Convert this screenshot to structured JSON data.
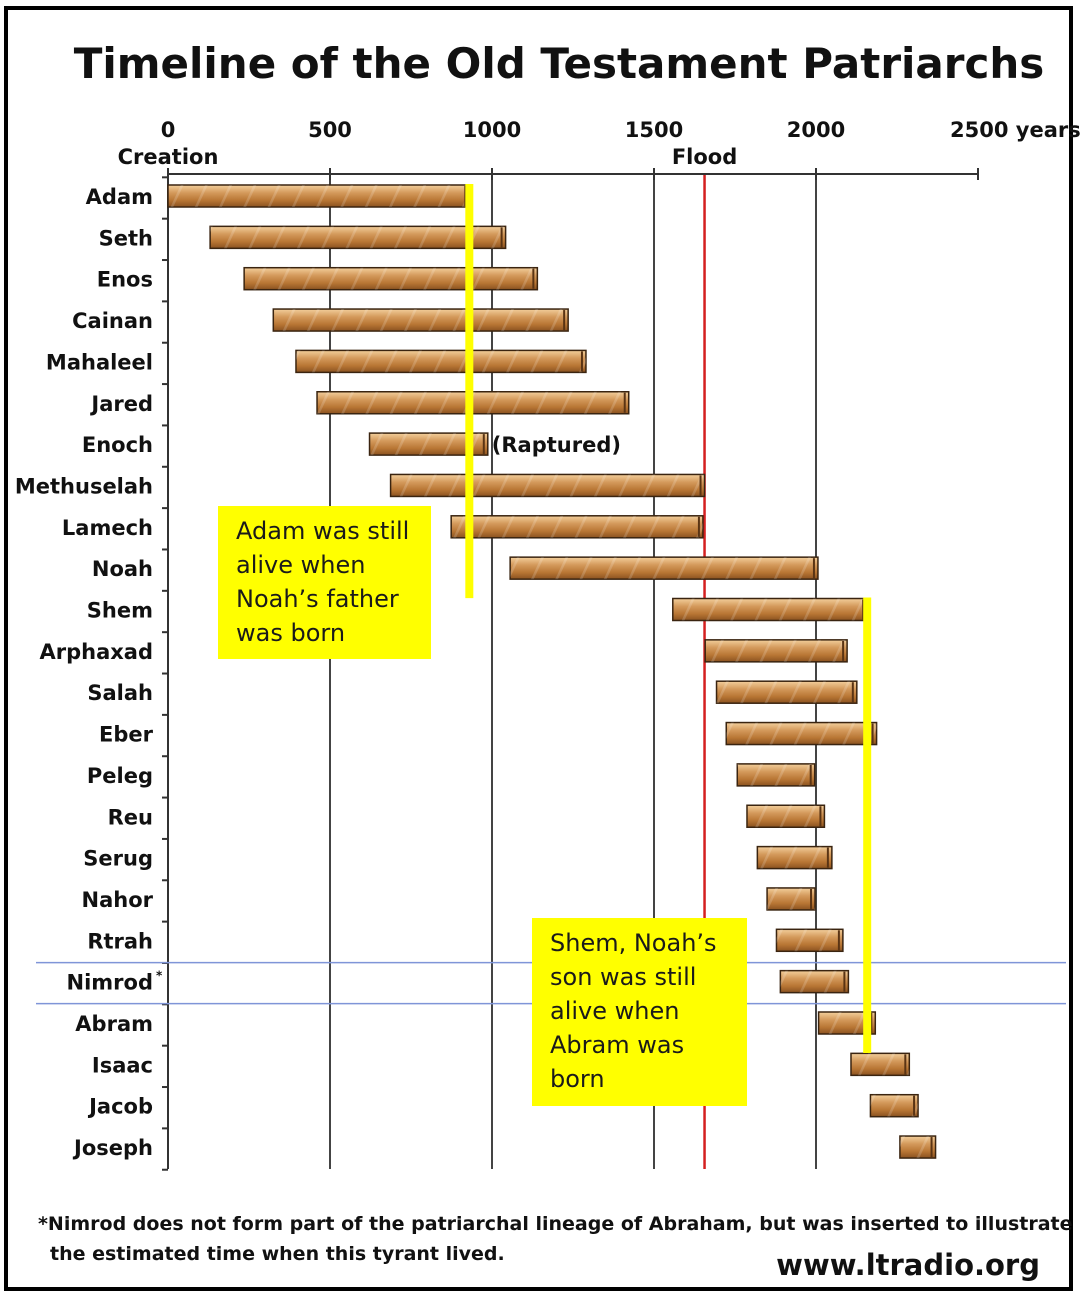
{
  "chart_data": {
    "type": "bar",
    "orientation": "horizontal-range",
    "title": "Timeline of the Old Testament Patriarchs",
    "x_ticks": [
      {
        "value": 0,
        "label": "0",
        "sublabel": "Creation"
      },
      {
        "value": 500,
        "label": "500"
      },
      {
        "value": 1000,
        "label": "1000"
      },
      {
        "value": 1500,
        "label": "1500"
      },
      {
        "value": 2000,
        "label": "2000"
      },
      {
        "value": 2500,
        "label": "2500 years"
      }
    ],
    "xlim": [
      0,
      2500
    ],
    "grid": true,
    "flood": {
      "value": 1656,
      "label": "Flood",
      "color": "#d42020"
    },
    "series": [
      {
        "name": "Adam",
        "start": 0,
        "end": 930
      },
      {
        "name": "Seth",
        "start": 130,
        "end": 1042
      },
      {
        "name": "Enos",
        "start": 235,
        "end": 1140
      },
      {
        "name": "Cainan",
        "start": 325,
        "end": 1235
      },
      {
        "name": "Mahaleel",
        "start": 395,
        "end": 1290
      },
      {
        "name": "Jared",
        "start": 460,
        "end": 1422
      },
      {
        "name": "Enoch",
        "start": 622,
        "end": 987,
        "note": "(Raptured)"
      },
      {
        "name": "Methuselah",
        "start": 687,
        "end": 1656
      },
      {
        "name": "Lamech",
        "start": 874,
        "end": 1651
      },
      {
        "name": "Noah",
        "start": 1056,
        "end": 2006
      },
      {
        "name": "Shem",
        "start": 1558,
        "end": 2158
      },
      {
        "name": "Arphaxad",
        "start": 1658,
        "end": 2096
      },
      {
        "name": "Salah",
        "start": 1693,
        "end": 2126
      },
      {
        "name": "Eber",
        "start": 1723,
        "end": 2187
      },
      {
        "name": "Peleg",
        "start": 1757,
        "end": 1996
      },
      {
        "name": "Reu",
        "start": 1787,
        "end": 2026
      },
      {
        "name": "Serug",
        "start": 1819,
        "end": 2049
      },
      {
        "name": "Nahor",
        "start": 1849,
        "end": 1997
      },
      {
        "name": "Rtrah",
        "start": 1878,
        "end": 2083
      },
      {
        "name": "Nimrod",
        "start": 1890,
        "end": 2100,
        "marker": "*"
      },
      {
        "name": "Abram",
        "start": 2008,
        "end": 2183
      },
      {
        "name": "Isaac",
        "start": 2108,
        "end": 2288
      },
      {
        "name": "Jacob",
        "start": 2168,
        "end": 2315
      },
      {
        "name": "Joseph",
        "start": 2259,
        "end": 2369
      }
    ],
    "highlight_lines": [
      {
        "x": 930,
        "from": "Adam",
        "to": "Noah",
        "color": "#ffff00"
      },
      {
        "x": 2158,
        "from": "Shem",
        "to": "Abram",
        "color": "#ffff00"
      }
    ],
    "nimrod_band_color": "#7f95d8",
    "bar_color": "#c8884a"
  },
  "callouts": {
    "adam_note": "Adam was still\nalive when\nNoah’s father\nwas born",
    "shem_note": "Shem, Noah’s\nson was still\nalive when\nAbram was\nborn"
  },
  "footnote": {
    "line1": "*Nimrod does not form part of the patriarchal lineage of Abraham, but was inserted to illustrate",
    "line2": "the estimated time when this tyrant lived."
  },
  "website": "www.ltradio.org"
}
